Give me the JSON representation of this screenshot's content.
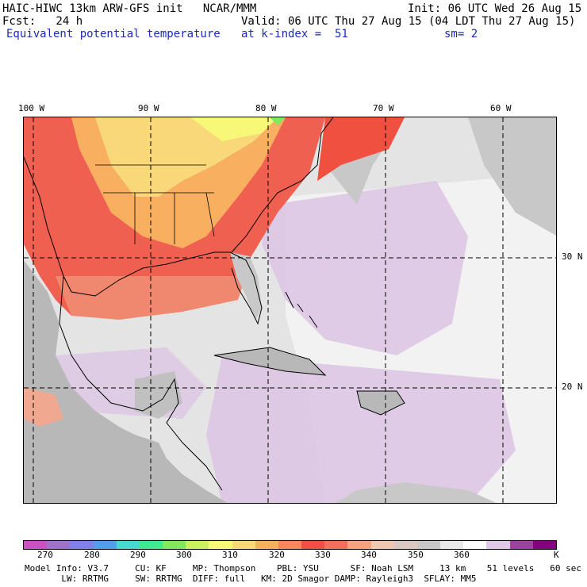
{
  "header": {
    "title_line": "HAIC-HIWC 13km ARW-GFS init   NCAR/MMM",
    "init_line": "Init: 06 UTC Wed 26 Aug 15",
    "fcst_line": "Fcst:   24 h",
    "valid_line": "Valid: 06 UTC Thu 27 Aug 15 (04 LDT Thu 27 Aug 15)",
    "field_line": "Equivalent potential temperature",
    "level_line": "at k-index =  51",
    "smooth_line": "sm= 2"
  },
  "map": {
    "region": "Southeastern United States, Gulf of Mexico, Caribbean",
    "lon_labels": [
      "100 W",
      "90 W",
      "80 W",
      "70 W",
      "60 W"
    ],
    "lat_labels": [
      "30 N",
      "20 N"
    ],
    "gridline_style": "dashed"
  },
  "colorbar": {
    "colors": [
      "#c850c8",
      "#a070d0",
      "#8080e8",
      "#50a0e8",
      "#48d8d0",
      "#40e890",
      "#80e860",
      "#c8f060",
      "#f8f878",
      "#f8d878",
      "#f8b060",
      "#f88858",
      "#f05040",
      "#f07058",
      "#f8a080",
      "#f0c8b0",
      "#d8c8c0",
      "#c8c8c8",
      "#e8e8e8",
      "#ffffff",
      "#e0c8e8",
      "#a040a0",
      "#800080"
    ],
    "tick_labels": [
      "270",
      "280",
      "290",
      "300",
      "310",
      "320",
      "330",
      "340",
      "350",
      "360",
      "K"
    ]
  },
  "footer": {
    "line1": "Model Info: V3.7     CU: KF     MP: Thompson    PBL: YSU      SF: Noah LSM     13 km    51 levels   60 sec",
    "line2": "       LW: RRTMG     SW: RRTMG  DIFF: full   KM: 2D Smagor DAMP: Rayleigh3  SFLAY: MM5"
  }
}
